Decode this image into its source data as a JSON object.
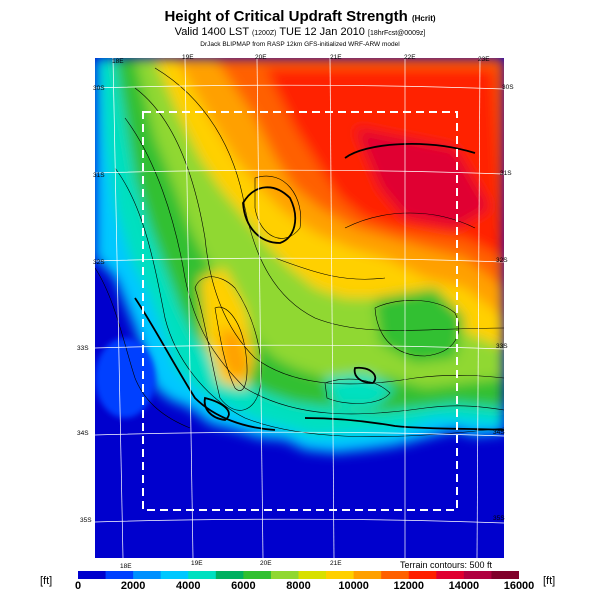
{
  "title": {
    "main": "Height of Critical Updraft Strength",
    "main_unit": "(Hcrit)",
    "valid": "Valid 1400 LST",
    "valid_z": "(1200Z)",
    "valid_date": "TUE 12 Jan 2010",
    "valid_fcst": "[18hrFcst@0009z]",
    "credit": "DrJack BLIPMAP from RASP 12km GFS-initialized WRF-ARW model"
  },
  "map": {
    "lon_labels_top": [
      "18E",
      "19E",
      "20E",
      "21E",
      "22E",
      "23E"
    ],
    "lon_labels_bottom": [
      "18E",
      "19E",
      "20E",
      "21E"
    ],
    "lat_labels_left": [
      "30S",
      "31S",
      "32S",
      "33S",
      "34S",
      "35S"
    ],
    "lat_labels_right": [
      "30S",
      "31S",
      "32S",
      "33S",
      "34S",
      "35S"
    ],
    "terrain_note": "Terrain contours: 500 ft"
  },
  "colorbar": {
    "unit_left": "[ft]",
    "unit_right": "[ft]",
    "labels": [
      "0",
      "2000",
      "4000",
      "6000",
      "8000",
      "10000",
      "12000",
      "14000",
      "16000"
    ],
    "colors": [
      "#0000cd",
      "#0040ff",
      "#0090ff",
      "#00c8ff",
      "#00e0c0",
      "#00b060",
      "#30c030",
      "#90d830",
      "#d8e000",
      "#ffd000",
      "#ffa000",
      "#ff6000",
      "#ff2000",
      "#e00030",
      "#b00040",
      "#80002a"
    ]
  }
}
